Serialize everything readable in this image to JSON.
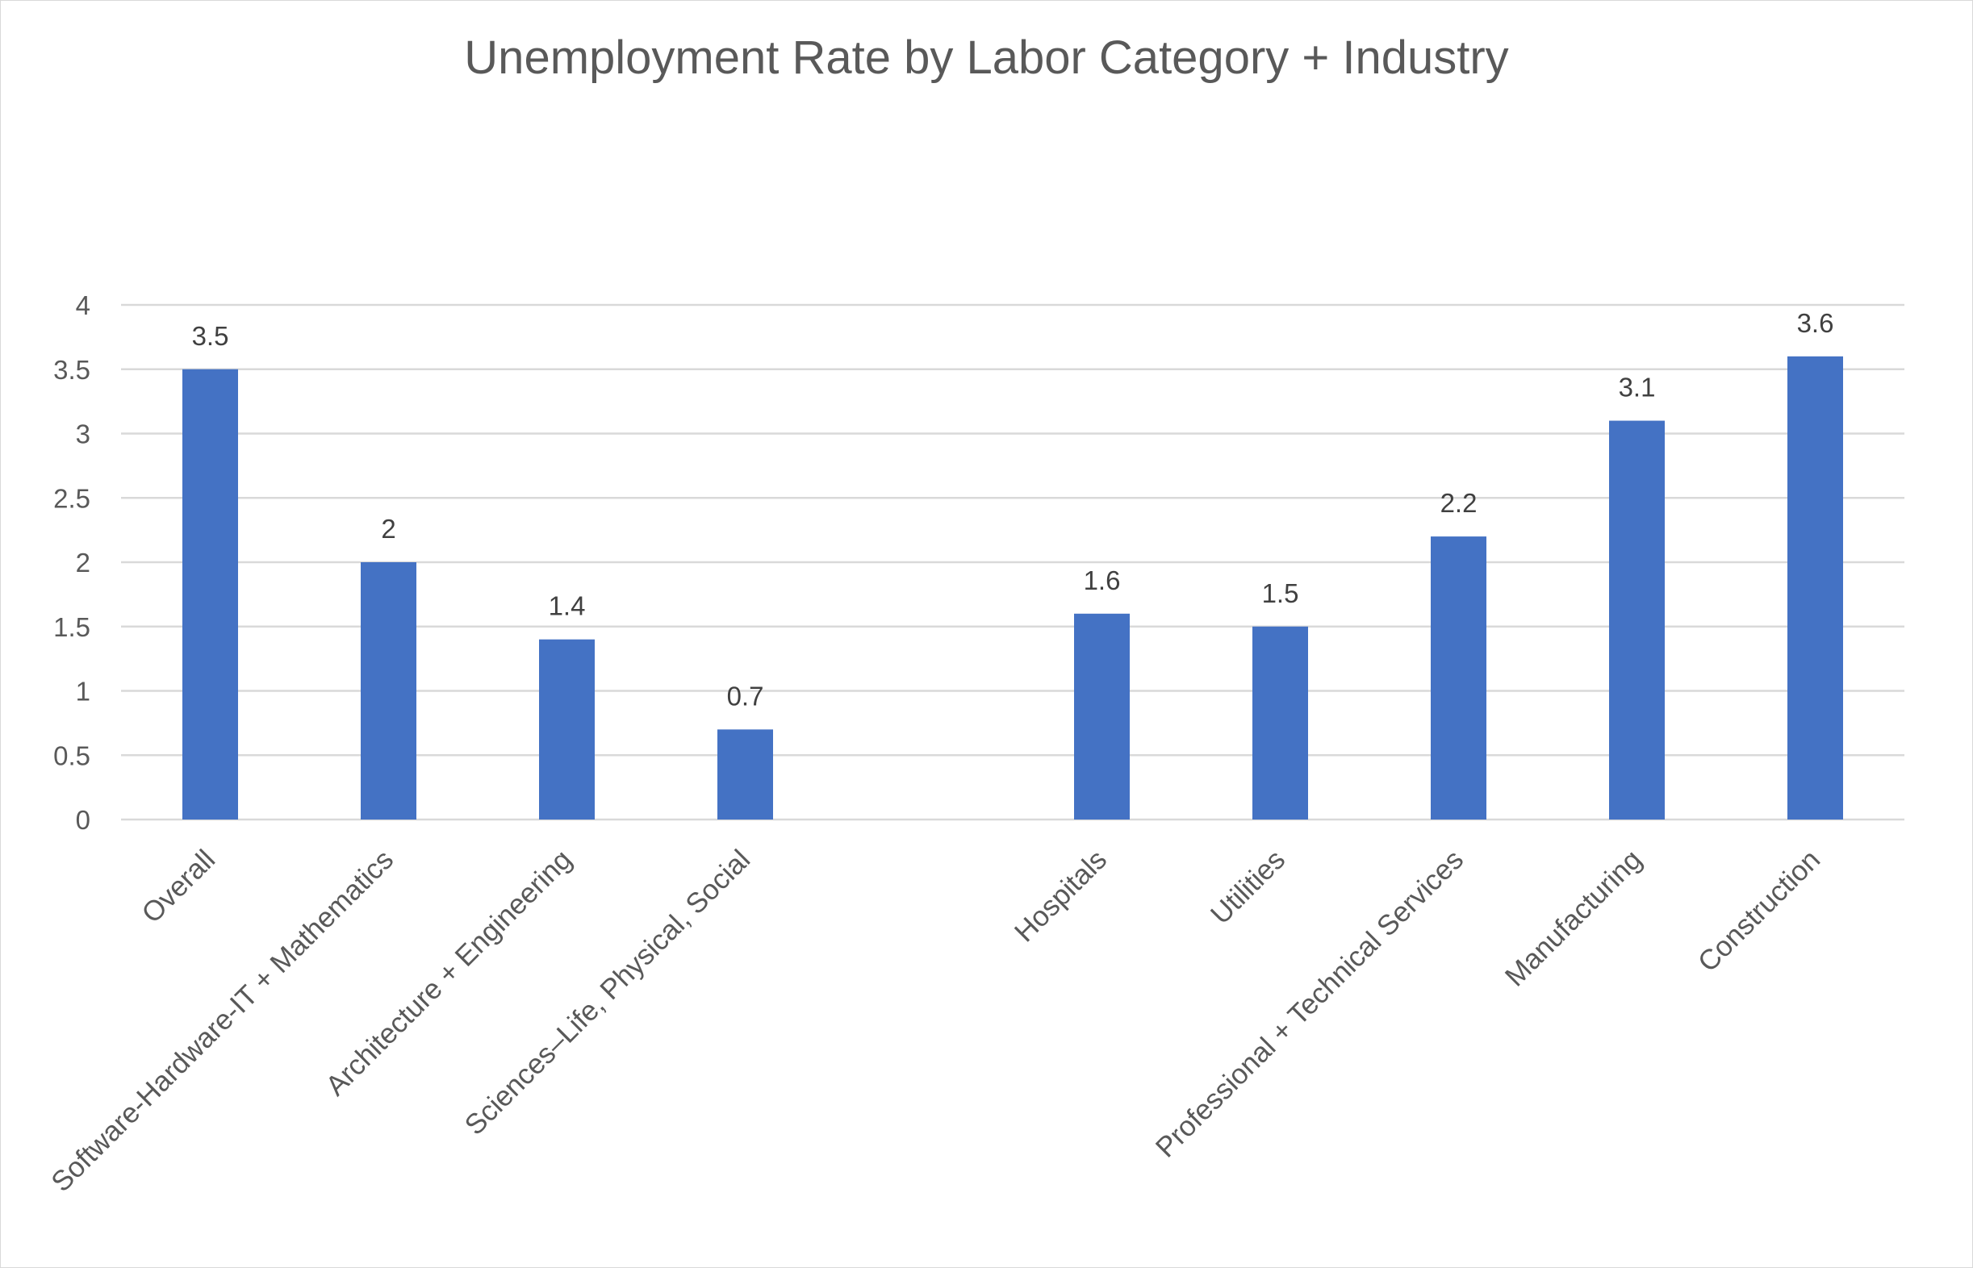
{
  "chart_data": {
    "type": "bar",
    "title": "Unemployment Rate by Labor Category + Industry",
    "xlabel": "",
    "ylabel": "",
    "ylim": [
      0,
      4
    ],
    "yticks": [
      "0",
      "0.5",
      "1",
      "1.5",
      "2",
      "2.5",
      "3",
      "3.5",
      "4"
    ],
    "grid": true,
    "legend": "none",
    "categories": [
      "Overall",
      "Software-Hardware-IT + Mathematics",
      "Architecture + Engineering",
      "Sciences–Life, Physical, Social",
      "",
      "Hospitals",
      "Utilities",
      "Professional + Technical Services",
      "Manufacturing",
      "Construction"
    ],
    "values": [
      3.5,
      2,
      1.4,
      0.7,
      null,
      1.6,
      1.5,
      2.2,
      3.1,
      3.6
    ],
    "data_labels": [
      "3.5",
      "2",
      "1.4",
      "0.7",
      "",
      "1.6",
      "1.5",
      "2.2",
      "3.1",
      "3.6"
    ],
    "colors": {
      "bar": "#4472C4",
      "grid": "#d9d9d9",
      "text": "#595959",
      "data_label": "#404040"
    }
  }
}
